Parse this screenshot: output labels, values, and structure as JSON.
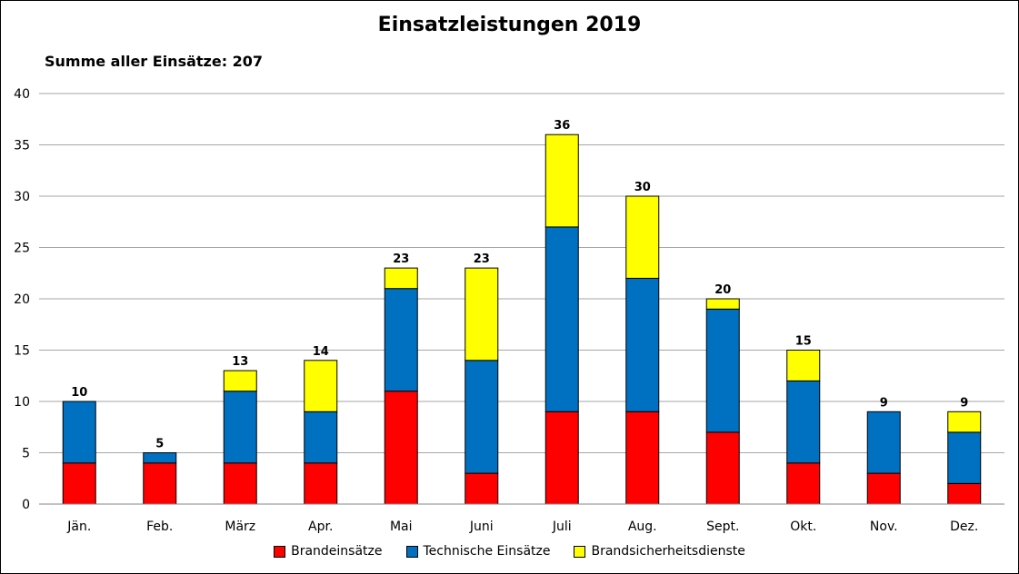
{
  "chart_data": {
    "type": "bar",
    "stacked": true,
    "title": "Einsatzleistungen 2019",
    "subtitle": "Summe aller Einsätze: 207",
    "categories": [
      "Jän.",
      "Feb.",
      "März",
      "Apr.",
      "Mai",
      "Juni",
      "Juli",
      "Aug.",
      "Sept.",
      "Okt.",
      "Nov.",
      "Dez."
    ],
    "series": [
      {
        "name": "Brandeinsätze",
        "color": "#ff0000",
        "values": [
          4,
          4,
          4,
          4,
          11,
          3,
          9,
          9,
          7,
          4,
          3,
          2
        ]
      },
      {
        "name": "Technische Einsätze",
        "color": "#0070c0",
        "values": [
          6,
          1,
          7,
          5,
          10,
          11,
          18,
          13,
          12,
          8,
          6,
          5
        ]
      },
      {
        "name": "Brandsicherheitsdienste",
        "color": "#ffff00",
        "values": [
          0,
          0,
          2,
          5,
          2,
          9,
          9,
          8,
          1,
          3,
          0,
          2
        ]
      }
    ],
    "totals": [
      10,
      5,
      13,
      14,
      23,
      23,
      36,
      30,
      20,
      15,
      9,
      9
    ],
    "ylim": [
      0,
      40
    ],
    "yticks": [
      0,
      5,
      10,
      15,
      20,
      25,
      30,
      35,
      40
    ],
    "grid": true,
    "legend_position": "bottom"
  }
}
